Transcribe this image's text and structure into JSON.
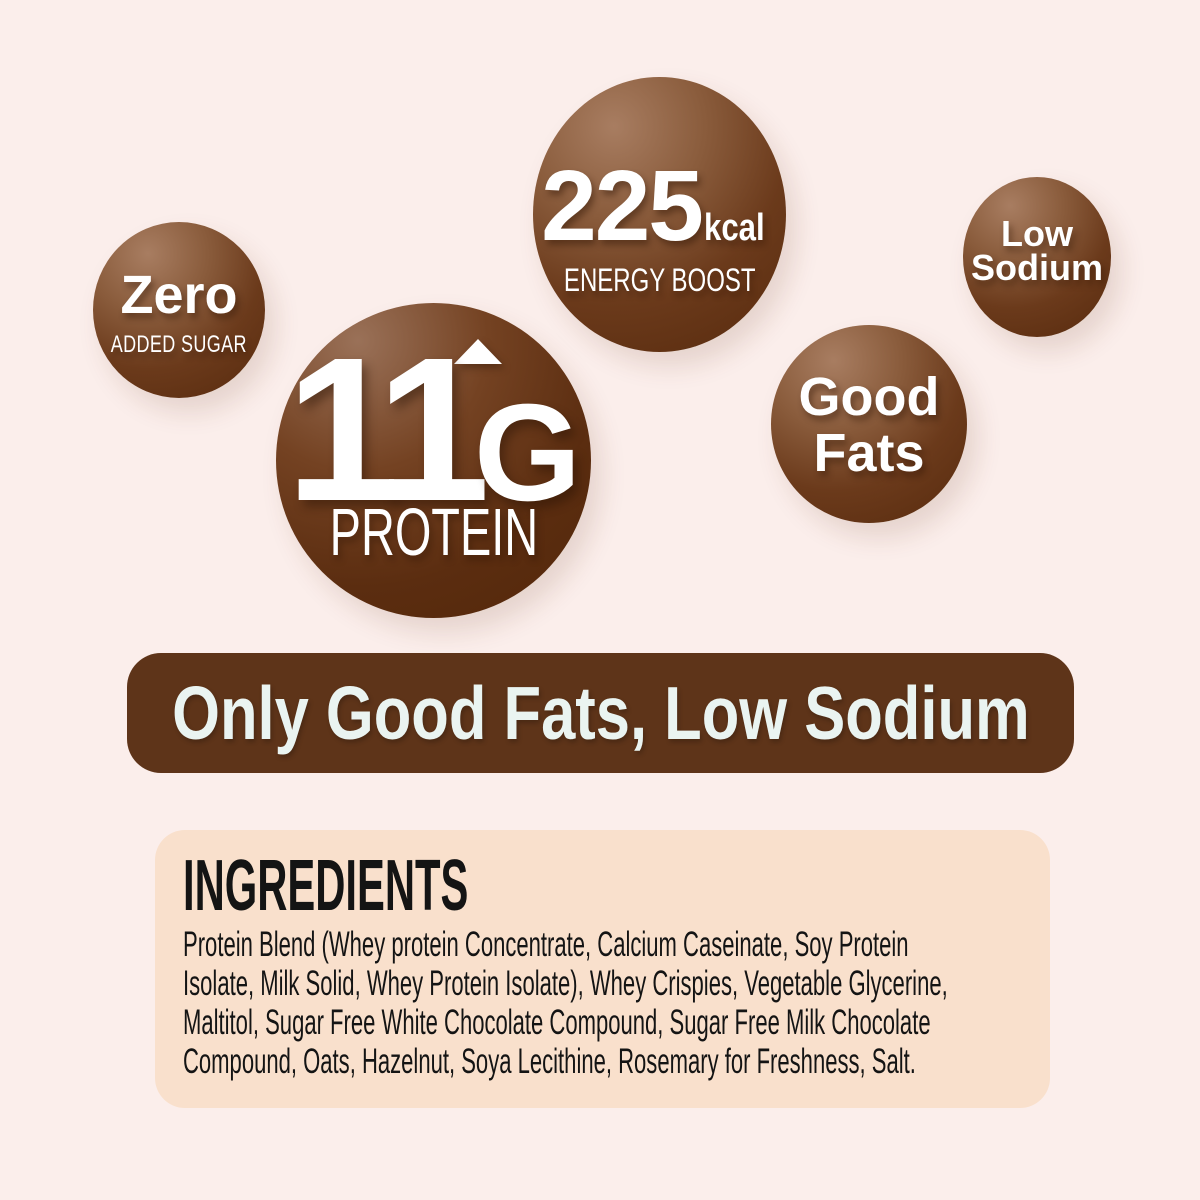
{
  "badges": {
    "added_sugar": {
      "value": "Zero",
      "label": "ADDED SUGAR"
    },
    "energy": {
      "value": "225",
      "unit": "kcal",
      "label": "ENERGY BOOST"
    },
    "low_sodium": {
      "line1": "Low",
      "line2": "Sodium"
    },
    "protein": {
      "value": "11",
      "unit": "G",
      "label": "PROTEIN",
      "arrow_icon": "arrow-up"
    },
    "good_fats": {
      "line1": "Good",
      "line2": "Fats"
    }
  },
  "banner": {
    "text": "Only Good Fats, Low Sodium"
  },
  "ingredients": {
    "heading": "INGREDIENTS",
    "lines": [
      "Protein Blend (Whey protein Concentrate, Calcium Caseinate, Soy Protein",
      "Isolate, Milk Solid, Whey Protein Isolate), Whey Crispies, Vegetable Glycerine,",
      "Maltitol, Sugar Free White Chocolate Compound, Sugar Free Milk Chocolate",
      "Compound, Oats, Hazelnut, Soya Lecithine, Rosemary for Freshness, Salt."
    ]
  },
  "colors": {
    "background": "#FBEEEB",
    "circle_gradient_light": "#A87D61",
    "circle_gradient_dark": "#572A0D",
    "banner_background": "#5E3419",
    "banner_text": "#EAF4F1",
    "ingredients_background": "#F9E0CC",
    "ingredients_text": "#141414",
    "badge_text": "#FFFFFF"
  }
}
